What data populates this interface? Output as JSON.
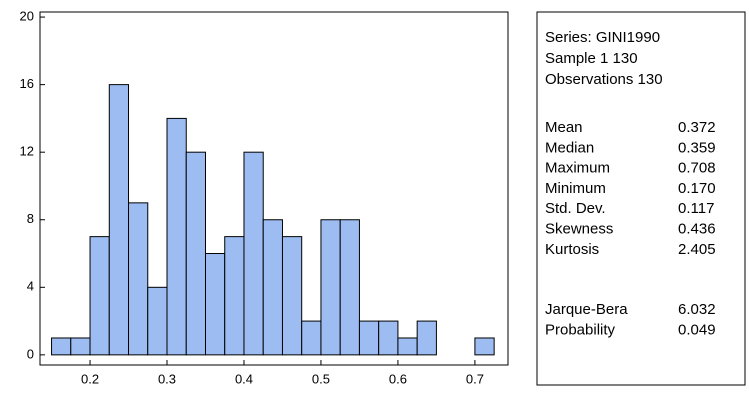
{
  "chart_data": {
    "type": "histogram",
    "bins": [
      0.15,
      0.175,
      0.2,
      0.225,
      0.25,
      0.275,
      0.3,
      0.325,
      0.35,
      0.375,
      0.4,
      0.425,
      0.45,
      0.475,
      0.5,
      0.525,
      0.55,
      0.575,
      0.6,
      0.625,
      0.65,
      0.675,
      0.7,
      0.725
    ],
    "values": [
      1,
      1,
      7,
      16,
      9,
      4,
      14,
      12,
      6,
      7,
      12,
      8,
      7,
      2,
      8,
      8,
      2,
      2,
      1,
      2,
      0,
      0,
      1
    ],
    "color": "#9dbdf2",
    "xlim": [
      0.135,
      0.743
    ],
    "xticks": [
      0.2,
      0.3,
      0.4,
      0.5,
      0.6,
      0.7
    ],
    "ylim": [
      -0.6,
      20.3
    ],
    "yticks": [
      0,
      4,
      8,
      12,
      16,
      20
    ]
  },
  "stats": {
    "header": [
      "Series: GINI1990",
      "Sample 1 130",
      "Observations 130"
    ],
    "rows": [
      [
        "Mean",
        "0.372"
      ],
      [
        "Median",
        "0.359"
      ],
      [
        "Maximum",
        "0.708"
      ],
      [
        "Minimum",
        "0.170"
      ],
      [
        "Std. Dev.",
        "0.117"
      ],
      [
        "Skewness",
        "0.436"
      ],
      [
        "Kurtosis",
        "2.405"
      ]
    ],
    "tests": [
      [
        "Jarque-Bera",
        "6.032"
      ],
      [
        "Probability",
        "0.049"
      ]
    ]
  }
}
